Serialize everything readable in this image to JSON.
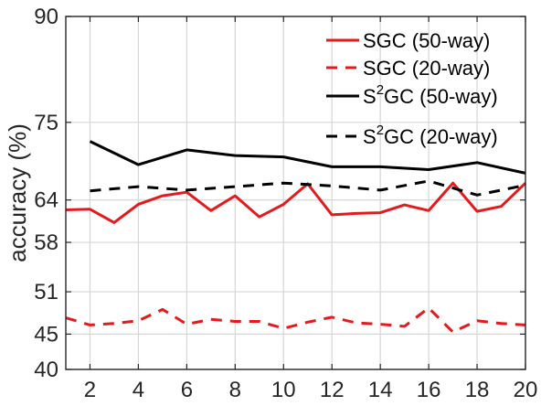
{
  "chart_data": {
    "type": "line",
    "title": "",
    "xlabel": "",
    "ylabel": "accuracy (%)",
    "xlim": [
      1,
      20
    ],
    "ylim": [
      40,
      90
    ],
    "x_ticks": [
      2,
      4,
      6,
      8,
      10,
      12,
      14,
      16,
      18,
      20
    ],
    "y_ticks": [
      40,
      45,
      51,
      58,
      64,
      75,
      90
    ],
    "y_tick_labels": [
      "40",
      "45",
      "51",
      "58",
      "64",
      "75",
      "90"
    ],
    "grid": true,
    "legend_position": "top-right",
    "series": [
      {
        "name": "SGC (50-way)",
        "color": "#e41a1c",
        "style": "solid",
        "x": [
          1,
          2,
          3,
          4,
          5,
          6,
          7,
          8,
          9,
          10,
          11,
          12,
          13,
          14,
          15,
          16,
          17,
          18,
          19,
          20
        ],
        "values": [
          62.6,
          62.7,
          60.8,
          63.4,
          64.6,
          65.1,
          62.5,
          64.6,
          61.6,
          63.4,
          66.3,
          61.9,
          62.1,
          62.2,
          63.3,
          62.5,
          66.4,
          62.4,
          63.1,
          66.4
        ]
      },
      {
        "name": "SGC (20-way)",
        "color": "#e41a1c",
        "style": "dashed",
        "x": [
          1,
          2,
          3,
          4,
          5,
          6,
          7,
          8,
          9,
          10,
          11,
          12,
          13,
          14,
          15,
          16,
          17,
          18,
          19,
          20
        ],
        "values": [
          47.3,
          46.3,
          46.5,
          46.9,
          48.5,
          46.4,
          47.1,
          46.8,
          46.8,
          45.8,
          46.7,
          47.4,
          46.6,
          46.4,
          46.1,
          48.7,
          45.3,
          46.9,
          46.5,
          46.3
        ]
      },
      {
        "name": "S2GC (50-way)",
        "label_main": "S",
        "label_sup": "2",
        "label_rest": "GC (50-way)",
        "color": "#000000",
        "style": "solid",
        "x": [
          2,
          4,
          6,
          8,
          10,
          12,
          14,
          16,
          18,
          20
        ],
        "values": [
          72.3,
          69.0,
          71.1,
          70.3,
          70.1,
          68.7,
          68.7,
          68.3,
          69.3,
          67.8
        ]
      },
      {
        "name": "S2GC (20-way)",
        "label_main": "S",
        "label_sup": "2",
        "label_rest": "GC (20-way)",
        "color": "#000000",
        "style": "dashed",
        "x": [
          2,
          4,
          6,
          8,
          10,
          12,
          14,
          16,
          18,
          20
        ],
        "values": [
          65.3,
          65.9,
          65.4,
          65.9,
          66.4,
          66.0,
          65.4,
          66.7,
          64.7,
          66.1
        ]
      }
    ]
  }
}
